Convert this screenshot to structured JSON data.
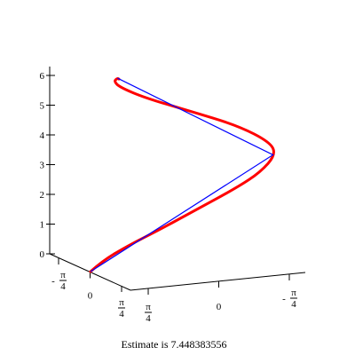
{
  "chart_data": {
    "type": "line",
    "title": "",
    "caption": "Estimate is 7.448383556",
    "axes": {
      "vertical": {
        "ticks": [
          {
            "value": 0,
            "label": "0"
          },
          {
            "value": 1,
            "label": "1"
          },
          {
            "value": 2,
            "label": "2"
          },
          {
            "value": 3,
            "label": "3"
          },
          {
            "value": 4,
            "label": "4"
          },
          {
            "value": 5,
            "label": "5"
          },
          {
            "value": 6,
            "label": "6"
          }
        ],
        "range": [
          0,
          6.3
        ]
      },
      "left_axis": {
        "ticks": [
          {
            "value": -0.7854,
            "sign": "-",
            "num": "π",
            "den": "4"
          },
          {
            "value": 0,
            "label": "0"
          },
          {
            "value": 0.7854,
            "sign": "",
            "num": "π",
            "den": "4"
          }
        ]
      },
      "right_axis": {
        "ticks": [
          {
            "value": 0.7854,
            "sign": "",
            "num": "π",
            "den": "4"
          },
          {
            "value": 0,
            "label": "0"
          },
          {
            "value": -0.7854,
            "sign": "-",
            "num": "π",
            "den": "4"
          }
        ]
      }
    },
    "series": [
      {
        "kind": "curve",
        "color": "#ff0000",
        "points": [
          [
            0,
            0.785,
            0
          ],
          [
            0,
            0.7,
            0.3
          ],
          [
            0,
            0.52,
            0.7
          ],
          [
            0,
            0.3,
            1.1
          ],
          [
            0,
            0.05,
            1.6
          ],
          [
            0,
            -0.25,
            2.2
          ],
          [
            0,
            -0.41,
            2.6
          ],
          [
            0,
            -0.52,
            3.1
          ],
          [
            0,
            -0.48,
            3.5
          ],
          [
            0,
            -0.25,
            4.1
          ],
          [
            0,
            0.1,
            4.7
          ],
          [
            0,
            0.4,
            5.2
          ],
          [
            0,
            0.58,
            5.6
          ],
          [
            0,
            0.62,
            5.8
          ],
          [
            0,
            0.595,
            5.88
          ],
          [
            0,
            0.585,
            5.85
          ]
        ]
      },
      {
        "kind": "polyline",
        "color": "#0000ff",
        "points": [
          [
            0,
            0.785,
            0
          ],
          [
            0,
            -0.5,
            3.1
          ],
          [
            0,
            0.595,
            5.88
          ]
        ]
      }
    ]
  }
}
